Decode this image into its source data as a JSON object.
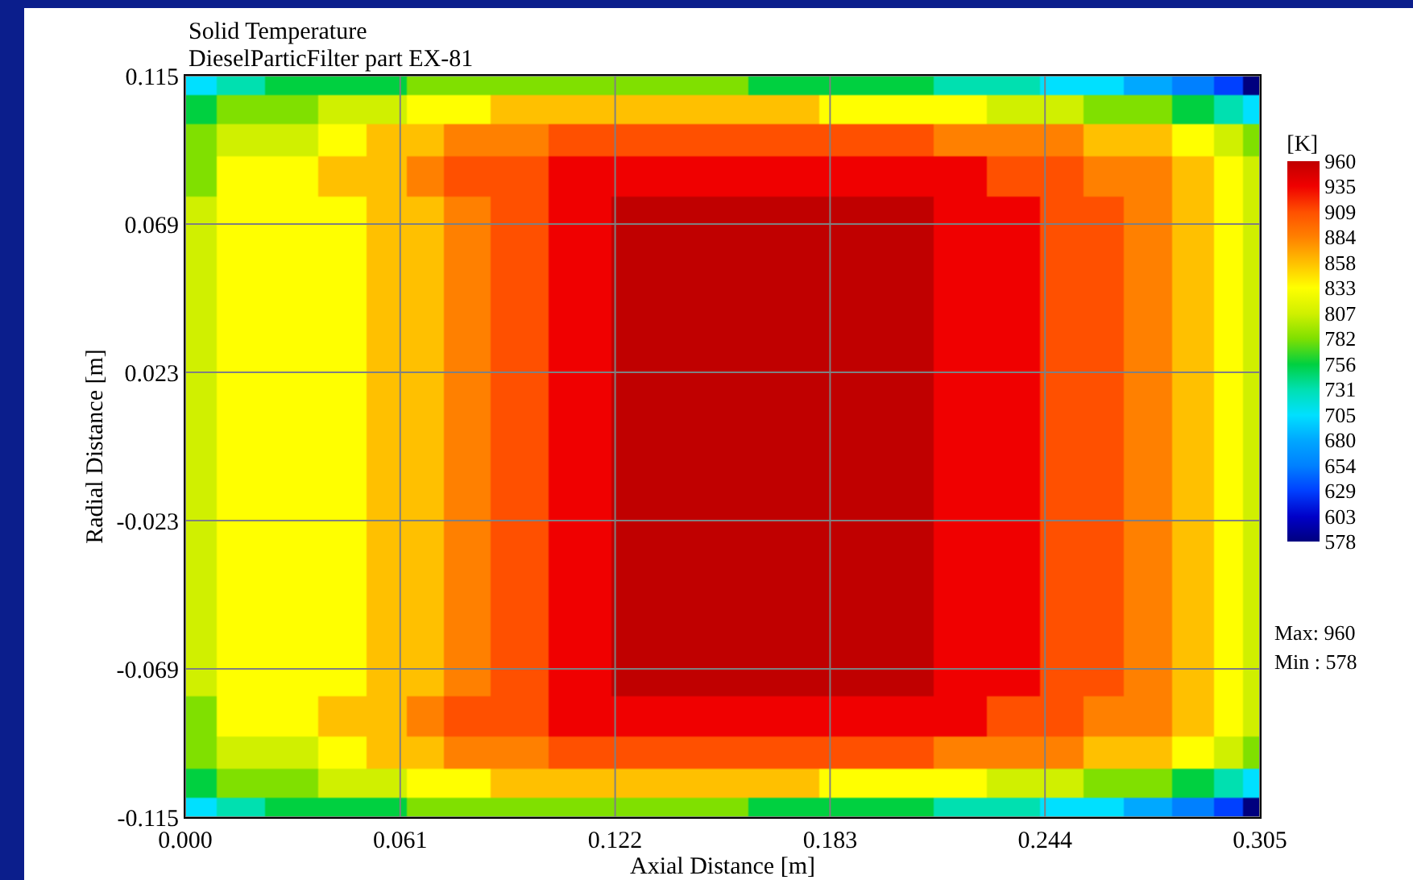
{
  "chart_data": {
    "type": "heatmap",
    "title": "Solid Temperature",
    "subtitle": "DieselParticFilter part EX-81",
    "xlabel": "Axial Distance [m]",
    "ylabel": "Radial Distance [m]",
    "clabel": "[K]",
    "x": [
      0.003,
      0.015,
      0.03,
      0.045,
      0.058,
      0.068,
      0.079,
      0.094,
      0.112,
      0.13,
      0.15,
      0.17,
      0.19,
      0.205,
      0.22,
      0.235,
      0.25,
      0.26,
      0.273,
      0.287,
      0.297,
      0.303
    ],
    "y": [
      0.113,
      0.105,
      0.095,
      0.085,
      0.07,
      0.04,
      0.01,
      -0.02,
      -0.05,
      -0.07,
      -0.085,
      -0.095,
      -0.105,
      -0.113
    ],
    "cells": [
      [
        705,
        731,
        756,
        756,
        756,
        782,
        782,
        782,
        782,
        782,
        782,
        756,
        756,
        756,
        731,
        731,
        705,
        705,
        680,
        654,
        629,
        578
      ],
      [
        756,
        782,
        782,
        807,
        807,
        833,
        833,
        858,
        858,
        858,
        858,
        858,
        833,
        833,
        833,
        807,
        807,
        782,
        782,
        756,
        731,
        705
      ],
      [
        782,
        807,
        807,
        833,
        858,
        858,
        884,
        884,
        909,
        909,
        909,
        909,
        909,
        909,
        884,
        884,
        884,
        858,
        858,
        833,
        807,
        782
      ],
      [
        782,
        833,
        833,
        858,
        858,
        884,
        909,
        909,
        935,
        935,
        935,
        935,
        935,
        935,
        935,
        909,
        909,
        884,
        884,
        858,
        833,
        807
      ],
      [
        807,
        833,
        833,
        833,
        858,
        858,
        884,
        909,
        935,
        960,
        960,
        960,
        960,
        960,
        935,
        935,
        909,
        909,
        884,
        858,
        833,
        807
      ],
      [
        807,
        833,
        833,
        833,
        858,
        858,
        884,
        909,
        935,
        960,
        960,
        960,
        960,
        960,
        935,
        935,
        909,
        909,
        884,
        858,
        833,
        807
      ],
      [
        807,
        833,
        833,
        833,
        858,
        858,
        884,
        909,
        935,
        960,
        960,
        960,
        960,
        960,
        935,
        935,
        909,
        909,
        884,
        858,
        833,
        807
      ],
      [
        807,
        833,
        833,
        833,
        858,
        858,
        884,
        909,
        935,
        960,
        960,
        960,
        960,
        960,
        935,
        935,
        909,
        909,
        884,
        858,
        833,
        807
      ],
      [
        807,
        833,
        833,
        833,
        858,
        858,
        884,
        909,
        935,
        960,
        960,
        960,
        960,
        960,
        935,
        935,
        909,
        909,
        884,
        858,
        833,
        807
      ],
      [
        807,
        833,
        833,
        833,
        858,
        858,
        884,
        909,
        935,
        960,
        960,
        960,
        960,
        960,
        935,
        935,
        909,
        909,
        884,
        858,
        833,
        807
      ],
      [
        782,
        833,
        833,
        858,
        858,
        884,
        909,
        909,
        935,
        935,
        935,
        935,
        935,
        935,
        935,
        909,
        909,
        884,
        884,
        858,
        833,
        807
      ],
      [
        782,
        807,
        807,
        833,
        858,
        858,
        884,
        884,
        909,
        909,
        909,
        909,
        909,
        909,
        884,
        884,
        884,
        858,
        858,
        833,
        807,
        782
      ],
      [
        756,
        782,
        782,
        807,
        807,
        833,
        833,
        858,
        858,
        858,
        858,
        858,
        833,
        833,
        833,
        807,
        807,
        782,
        782,
        756,
        731,
        705
      ],
      [
        705,
        731,
        756,
        756,
        756,
        782,
        782,
        782,
        782,
        782,
        782,
        756,
        756,
        756,
        731,
        731,
        705,
        705,
        680,
        654,
        629,
        578
      ]
    ],
    "colors": [
      "#00007f",
      "#0000c8",
      "#0040ff",
      "#0080ff",
      "#00a8ff",
      "#00e0ff",
      "#00e0b0",
      "#00d040",
      "#80e000",
      "#d0f000",
      "#ffff00",
      "#ffc000",
      "#ff8000",
      "#ff5000",
      "#f00000",
      "#c00000"
    ],
    "clim": [
      578,
      960
    ],
    "cticks": [
      578,
      603,
      629,
      654,
      680,
      705,
      731,
      756,
      782,
      807,
      833,
      858,
      884,
      909,
      935,
      960
    ],
    "xlim": [
      0,
      0.305
    ],
    "ylim": [
      -0.115,
      0.115
    ],
    "xticks": [
      {
        "value": 0,
        "label": "0.000"
      },
      0.061,
      0.122,
      0.183,
      0.244,
      0.305
    ],
    "yticks": [
      0.115,
      0.069,
      0.023,
      -0.023,
      -0.069,
      -0.115
    ],
    "grid": true,
    "annotations": [
      "Max: 960",
      "Min : 578"
    ]
  }
}
